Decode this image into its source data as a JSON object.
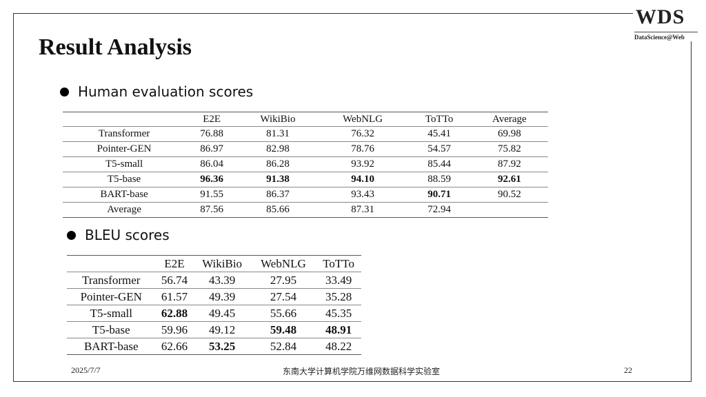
{
  "logo": {
    "main": "WDS",
    "sub": "DataScience@Web"
  },
  "title": "Result Analysis",
  "sections": {
    "human": "Human evaluation scores",
    "bleu": "BLEU scores"
  },
  "human_table": {
    "headers": [
      "",
      "E2E",
      "WikiBio",
      "WebNLG",
      "ToTTo",
      "Average"
    ],
    "rows": [
      [
        "Transformer",
        "76.88",
        "81.31",
        "76.32",
        "45.41",
        "69.98"
      ],
      [
        "Pointer-GEN",
        "86.97",
        "82.98",
        "78.76",
        "54.57",
        "75.82"
      ],
      [
        "T5-small",
        "86.04",
        "86.28",
        "93.92",
        "85.44",
        "87.92"
      ],
      [
        "T5-base",
        "96.36",
        "91.38",
        "94.10",
        "88.59",
        "92.61"
      ],
      [
        "BART-base",
        "91.55",
        "86.37",
        "93.43",
        "90.71",
        "90.52"
      ],
      [
        "Average",
        "87.56",
        "85.66",
        "87.31",
        "72.94",
        ""
      ]
    ],
    "bold_cells": [
      [
        3,
        1
      ],
      [
        3,
        2
      ],
      [
        3,
        3
      ],
      [
        3,
        5
      ],
      [
        4,
        4
      ]
    ]
  },
  "bleu_table": {
    "headers": [
      "",
      "E2E",
      "WikiBio",
      "WebNLG",
      "ToTTo"
    ],
    "rows": [
      [
        "Transformer",
        "56.74",
        "43.39",
        "27.95",
        "33.49"
      ],
      [
        "Pointer-GEN",
        "61.57",
        "49.39",
        "27.54",
        "35.28"
      ],
      [
        "T5-small",
        "62.88",
        "49.45",
        "55.66",
        "45.35"
      ],
      [
        "T5-base",
        "59.96",
        "49.12",
        "59.48",
        "48.91"
      ],
      [
        "BART-base",
        "62.66",
        "53.25",
        "52.84",
        "48.22"
      ]
    ],
    "bold_cells": [
      [
        2,
        1
      ],
      [
        3,
        3
      ],
      [
        3,
        4
      ],
      [
        4,
        2
      ]
    ]
  },
  "footer": {
    "date": "2025/7/7",
    "lab": "东南大学计算机学院万维网数据科学实验室",
    "page": "22"
  }
}
